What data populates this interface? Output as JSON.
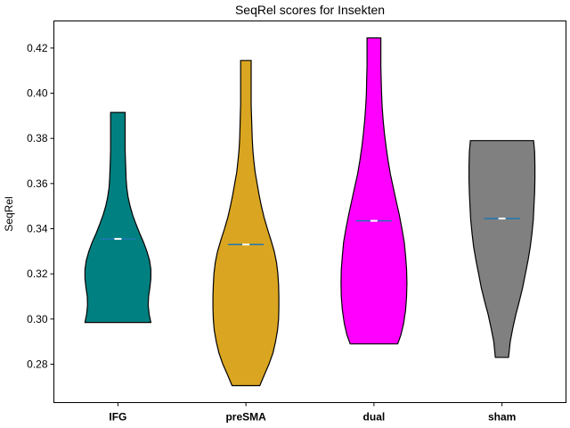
{
  "chart_data": {
    "type": "violin",
    "title": "SeqRel scores for Insekten",
    "xlabel": "",
    "ylabel": "SeqRel",
    "ylim": [
      0.263,
      0.432
    ],
    "yticks": [
      "0.28",
      "0.30",
      "0.32",
      "0.34",
      "0.36",
      "0.38",
      "0.40",
      "0.42"
    ],
    "categories": [
      "IFG",
      "preSMA",
      "dual",
      "sham"
    ],
    "grid": false,
    "violins": [
      {
        "category": "IFG",
        "color": "#008080",
        "min": 0.2985,
        "max": 0.3915,
        "median": 0.3355,
        "mean": 0.3355,
        "profile": [
          [
            0.2985,
            1.0
          ],
          [
            0.302,
            0.95
          ],
          [
            0.306,
            0.92
          ],
          [
            0.31,
            0.93
          ],
          [
            0.314,
            0.97
          ],
          [
            0.318,
            1.0
          ],
          [
            0.322,
            1.0
          ],
          [
            0.326,
            0.96
          ],
          [
            0.33,
            0.88
          ],
          [
            0.334,
            0.78
          ],
          [
            0.338,
            0.66
          ],
          [
            0.342,
            0.55
          ],
          [
            0.346,
            0.45
          ],
          [
            0.35,
            0.37
          ],
          [
            0.354,
            0.31
          ],
          [
            0.358,
            0.27
          ],
          [
            0.362,
            0.25
          ],
          [
            0.366,
            0.24
          ],
          [
            0.37,
            0.23
          ],
          [
            0.375,
            0.22
          ],
          [
            0.38,
            0.22
          ],
          [
            0.385,
            0.22
          ],
          [
            0.3915,
            0.22
          ]
        ]
      },
      {
        "category": "preSMA",
        "color": "#DAA520",
        "min": 0.2705,
        "max": 0.4145,
        "median": 0.333,
        "mean": 0.333,
        "profile": [
          [
            0.2705,
            0.42
          ],
          [
            0.275,
            0.55
          ],
          [
            0.28,
            0.7
          ],
          [
            0.285,
            0.82
          ],
          [
            0.29,
            0.9
          ],
          [
            0.295,
            0.96
          ],
          [
            0.3,
            0.99
          ],
          [
            0.305,
            1.0
          ],
          [
            0.31,
            1.0
          ],
          [
            0.315,
            0.99
          ],
          [
            0.32,
            0.97
          ],
          [
            0.325,
            0.93
          ],
          [
            0.33,
            0.86
          ],
          [
            0.335,
            0.76
          ],
          [
            0.34,
            0.65
          ],
          [
            0.345,
            0.55
          ],
          [
            0.35,
            0.47
          ],
          [
            0.355,
            0.4
          ],
          [
            0.36,
            0.34
          ],
          [
            0.365,
            0.28
          ],
          [
            0.37,
            0.24
          ],
          [
            0.375,
            0.21
          ],
          [
            0.38,
            0.19
          ],
          [
            0.385,
            0.18
          ],
          [
            0.39,
            0.17
          ],
          [
            0.395,
            0.16
          ],
          [
            0.4,
            0.16
          ],
          [
            0.405,
            0.16
          ],
          [
            0.41,
            0.16
          ],
          [
            0.4145,
            0.16
          ]
        ]
      },
      {
        "category": "dual",
        "color": "#FF00FF",
        "min": 0.289,
        "max": 0.4245,
        "median": 0.3435,
        "mean": 0.3435,
        "profile": [
          [
            0.289,
            0.72
          ],
          [
            0.293,
            0.82
          ],
          [
            0.298,
            0.9
          ],
          [
            0.304,
            0.96
          ],
          [
            0.31,
            0.99
          ],
          [
            0.316,
            1.0
          ],
          [
            0.322,
            0.99
          ],
          [
            0.328,
            0.96
          ],
          [
            0.334,
            0.92
          ],
          [
            0.34,
            0.85
          ],
          [
            0.346,
            0.77
          ],
          [
            0.352,
            0.68
          ],
          [
            0.358,
            0.59
          ],
          [
            0.364,
            0.5
          ],
          [
            0.37,
            0.43
          ],
          [
            0.376,
            0.37
          ],
          [
            0.382,
            0.32
          ],
          [
            0.388,
            0.28
          ],
          [
            0.394,
            0.25
          ],
          [
            0.4,
            0.23
          ],
          [
            0.406,
            0.22
          ],
          [
            0.412,
            0.21
          ],
          [
            0.418,
            0.21
          ],
          [
            0.4245,
            0.21
          ]
        ]
      },
      {
        "category": "sham",
        "color": "#808080",
        "min": 0.283,
        "max": 0.379,
        "median": 0.3445,
        "mean": 0.3445,
        "profile": [
          [
            0.283,
            0.2
          ],
          [
            0.29,
            0.25
          ],
          [
            0.296,
            0.33
          ],
          [
            0.302,
            0.42
          ],
          [
            0.308,
            0.53
          ],
          [
            0.314,
            0.63
          ],
          [
            0.32,
            0.71
          ],
          [
            0.326,
            0.79
          ],
          [
            0.332,
            0.86
          ],
          [
            0.338,
            0.91
          ],
          [
            0.344,
            0.95
          ],
          [
            0.35,
            0.97
          ],
          [
            0.356,
            0.99
          ],
          [
            0.362,
            1.0
          ],
          [
            0.368,
            1.0
          ],
          [
            0.374,
            0.99
          ],
          [
            0.379,
            0.96
          ]
        ]
      }
    ]
  }
}
